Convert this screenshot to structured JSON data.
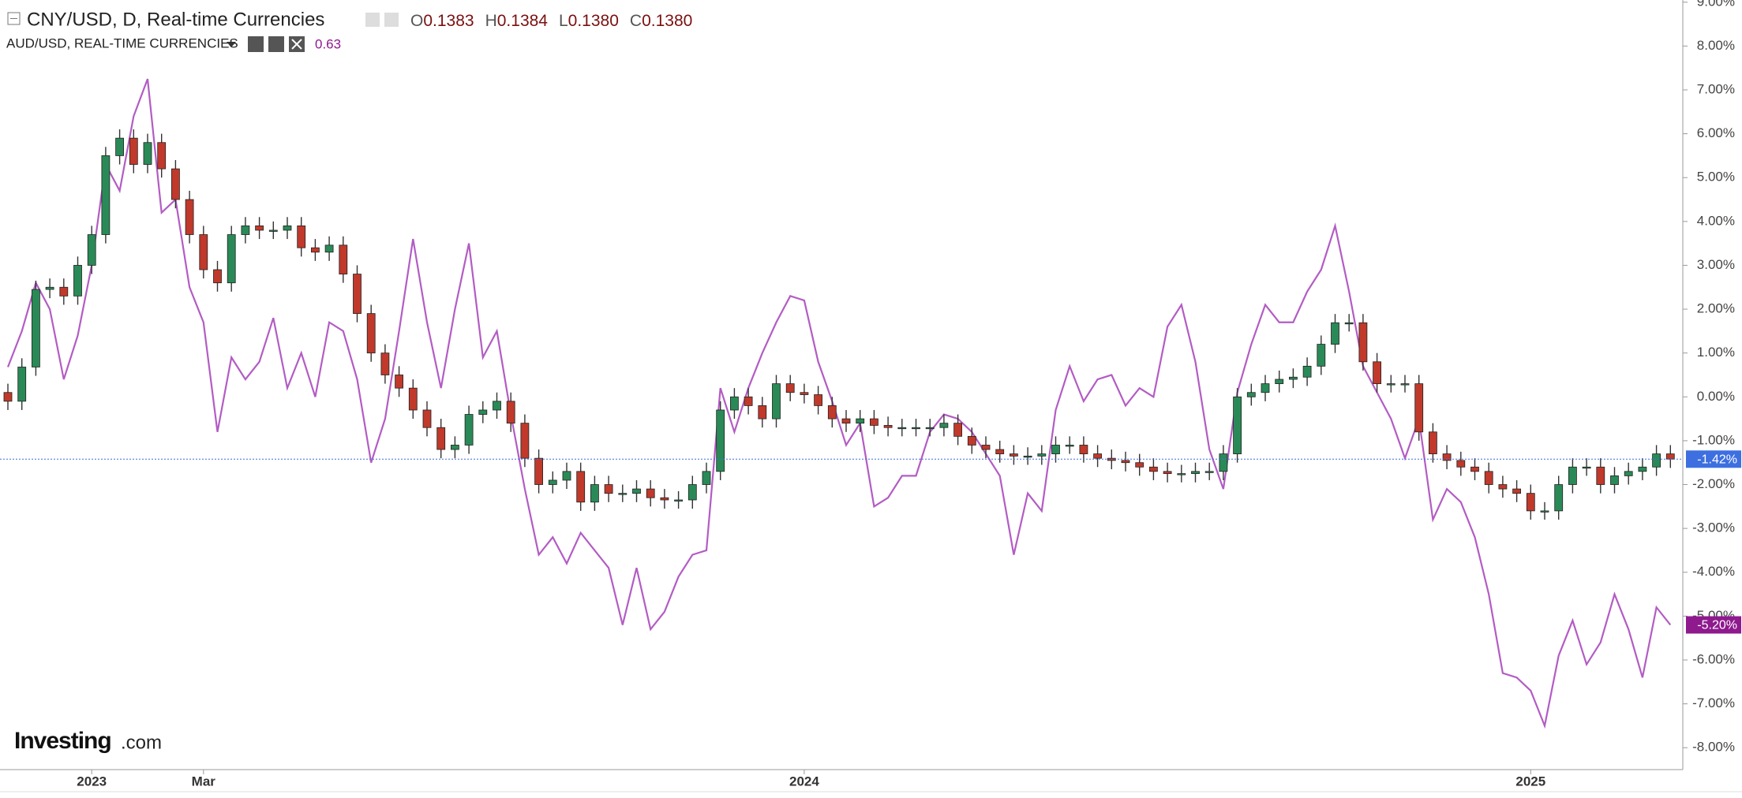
{
  "header": {
    "title": "CNY/USD, D, Real-time Currencies",
    "ohlc": [
      {
        "key": "O",
        "value": "0.1383"
      },
      {
        "key": "H",
        "value": "0.1384"
      },
      {
        "key": "L",
        "value": "0.1380"
      },
      {
        "key": "C",
        "value": "0.1380"
      }
    ],
    "overlay_title": "AUD/USD, REAL-TIME CURRENCIES",
    "overlay_value": "0.63"
  },
  "logo": {
    "brand": "Investing",
    "suffix": ".com"
  },
  "chart_data": {
    "type": "candlestick",
    "categories": [
      null,
      null,
      null,
      null,
      null,
      null,
      "2023",
      null,
      null,
      null,
      null,
      null,
      null,
      null,
      "Mar",
      null,
      null,
      null,
      null,
      null,
      null,
      null,
      null,
      null,
      null,
      null,
      null,
      null,
      null,
      null,
      null,
      null,
      null,
      null,
      null,
      null,
      null,
      null,
      null,
      null,
      null,
      null,
      null,
      null,
      null,
      null,
      null,
      null,
      null,
      null,
      null,
      null,
      null,
      null,
      null,
      null,
      null,
      "2024",
      null,
      null,
      null,
      null,
      null,
      null,
      null,
      null,
      null,
      null,
      null,
      null,
      null,
      null,
      null,
      null,
      null,
      null,
      null,
      null,
      null,
      null,
      null,
      null,
      null,
      null,
      null,
      null,
      null,
      null,
      null,
      null,
      null,
      null,
      null,
      null,
      null,
      null,
      null,
      null,
      null,
      null,
      null,
      null,
      null,
      null,
      null,
      null,
      null,
      null,
      null,
      "2025",
      null,
      null,
      null,
      null,
      null,
      null,
      null,
      null,
      null,
      null
    ],
    "open": [
      0.1,
      -0.1,
      0.68,
      2.45,
      2.5,
      2.3,
      3.0,
      3.7,
      5.5,
      5.9,
      5.3,
      5.8,
      5.2,
      4.5,
      3.7,
      2.9,
      2.6,
      3.7,
      3.9,
      3.8,
      3.8,
      3.9,
      3.4,
      3.3,
      3.46,
      2.8,
      1.9,
      1.0,
      0.5,
      0.2,
      -0.3,
      -0.7,
      -1.2,
      -1.1,
      -0.4,
      -0.3,
      -0.1,
      -0.6,
      -1.4,
      -2.0,
      -1.9,
      -1.7,
      -2.4,
      -2.0,
      -2.2,
      -2.2,
      -2.1,
      -2.3,
      -2.35,
      -2.35,
      -2.0,
      -1.7,
      -0.3,
      0.0,
      -0.2,
      -0.5,
      0.3,
      0.1,
      0.05,
      -0.2,
      -0.5,
      -0.6,
      -0.5,
      -0.65,
      -0.7,
      -0.7,
      -0.7,
      -0.7,
      -0.6,
      -0.9,
      -1.1,
      -1.2,
      -1.3,
      -1.35,
      -1.35,
      -1.3,
      -1.1,
      -1.1,
      -1.3,
      -1.4,
      -1.45,
      -1.5,
      -1.6,
      -1.7,
      -1.75,
      -1.75,
      -1.7,
      -1.7,
      -1.3,
      0.0,
      0.1,
      0.3,
      0.4,
      0.45,
      0.7,
      1.2,
      1.69,
      1.69,
      0.8,
      0.3,
      0.3,
      0.3,
      -0.8,
      -1.3,
      -1.45,
      -1.6,
      -1.7,
      -2.0,
      -2.1,
      -2.2,
      -2.6,
      -2.6,
      -2.0,
      -1.6,
      -1.6,
      -2.0,
      -1.8,
      -1.7,
      -1.6,
      -1.3
    ],
    "high": [
      0.3,
      0.88,
      2.65,
      2.7,
      2.7,
      3.2,
      3.9,
      5.7,
      6.1,
      6.1,
      6.0,
      6.0,
      5.4,
      4.7,
      3.9,
      3.1,
      3.9,
      4.1,
      4.1,
      4.0,
      4.1,
      4.1,
      3.6,
      3.66,
      3.66,
      3.0,
      2.1,
      1.2,
      0.7,
      0.4,
      -0.1,
      -0.5,
      -0.9,
      -0.2,
      -0.1,
      0.1,
      0.1,
      -0.4,
      -1.2,
      -1.7,
      -1.5,
      -1.5,
      -1.8,
      -1.8,
      -2.0,
      -1.9,
      -1.9,
      -2.1,
      -2.15,
      -1.8,
      -1.5,
      -0.1,
      0.2,
      0.2,
      0.0,
      0.5,
      0.5,
      0.3,
      0.25,
      0.0,
      -0.3,
      -0.3,
      -0.3,
      -0.45,
      -0.5,
      -0.5,
      -0.5,
      -0.4,
      -0.4,
      -0.7,
      -0.9,
      -1.0,
      -1.1,
      -1.15,
      -1.1,
      -0.9,
      -0.9,
      -0.9,
      -1.1,
      -1.2,
      -1.25,
      -1.3,
      -1.4,
      -1.5,
      -1.55,
      -1.5,
      -1.5,
      -1.1,
      0.2,
      0.3,
      0.5,
      0.6,
      0.65,
      0.9,
      1.4,
      1.89,
      1.89,
      1.89,
      1.0,
      0.5,
      0.5,
      0.5,
      -0.6,
      -1.1,
      -1.25,
      -1.4,
      -1.5,
      -1.8,
      -1.9,
      -2.0,
      -2.4,
      -1.8,
      -1.4,
      -1.4,
      -1.4,
      -1.6,
      -1.5,
      -1.4,
      -1.1,
      -1.1
    ],
    "low": [
      -0.3,
      -0.3,
      0.48,
      2.25,
      2.1,
      2.1,
      2.8,
      3.5,
      5.3,
      5.1,
      5.1,
      5.0,
      4.3,
      3.5,
      2.7,
      2.4,
      2.4,
      3.5,
      3.6,
      3.6,
      3.6,
      3.2,
      3.1,
      3.1,
      2.6,
      1.7,
      0.8,
      0.3,
      0.0,
      -0.5,
      -0.9,
      -1.4,
      -1.4,
      -1.3,
      -0.6,
      -0.5,
      -0.8,
      -1.6,
      -2.2,
      -2.2,
      -2.1,
      -2.6,
      -2.6,
      -2.4,
      -2.4,
      -2.4,
      -2.5,
      -2.55,
      -2.55,
      -2.55,
      -2.2,
      -1.9,
      -0.5,
      -0.4,
      -0.7,
      -0.7,
      -0.1,
      -0.15,
      -0.4,
      -0.7,
      -0.8,
      -0.8,
      -0.85,
      -0.9,
      -0.9,
      -0.9,
      -0.9,
      -0.9,
      -1.1,
      -1.3,
      -1.4,
      -1.5,
      -1.55,
      -1.55,
      -1.55,
      -1.5,
      -1.3,
      -1.5,
      -1.6,
      -1.65,
      -1.7,
      -1.8,
      -1.9,
      -1.95,
      -1.95,
      -1.95,
      -1.9,
      -1.9,
      -1.5,
      -0.2,
      -0.1,
      0.1,
      0.2,
      0.25,
      0.5,
      1.0,
      1.49,
      0.6,
      0.1,
      0.1,
      0.1,
      -1.0,
      -1.5,
      -1.65,
      -1.8,
      -1.9,
      -2.2,
      -2.3,
      -2.4,
      -2.8,
      -2.8,
      -2.8,
      -2.2,
      -1.8,
      -2.2,
      -2.2,
      -2.0,
      -1.9,
      -1.8,
      -1.62
    ],
    "close": [
      -0.1,
      0.68,
      2.45,
      2.5,
      2.3,
      3.0,
      3.7,
      5.5,
      5.9,
      5.3,
      5.8,
      5.2,
      4.5,
      3.7,
      2.9,
      2.6,
      3.7,
      3.9,
      3.8,
      3.8,
      3.9,
      3.4,
      3.3,
      3.46,
      2.8,
      1.9,
      1.0,
      0.5,
      0.2,
      -0.3,
      -0.7,
      -1.2,
      -1.1,
      -0.4,
      -0.3,
      -0.1,
      -0.6,
      -1.4,
      -2.0,
      -1.9,
      -1.7,
      -2.4,
      -2.0,
      -2.2,
      -2.2,
      -2.1,
      -2.3,
      -2.35,
      -2.35,
      -2.0,
      -1.7,
      -0.3,
      0.0,
      -0.2,
      -0.5,
      0.3,
      0.1,
      0.05,
      -0.2,
      -0.5,
      -0.6,
      -0.5,
      -0.65,
      -0.7,
      -0.7,
      -0.7,
      -0.7,
      -0.6,
      -0.9,
      -1.1,
      -1.2,
      -1.3,
      -1.35,
      -1.35,
      -1.3,
      -1.1,
      -1.1,
      -1.3,
      -1.4,
      -1.45,
      -1.5,
      -1.6,
      -1.7,
      -1.75,
      -1.75,
      -1.7,
      -1.7,
      -1.3,
      0.0,
      0.1,
      0.3,
      0.4,
      0.45,
      0.7,
      1.2,
      1.69,
      1.69,
      0.8,
      0.3,
      0.3,
      0.3,
      -0.8,
      -1.3,
      -1.45,
      -1.6,
      -1.7,
      -2.0,
      -2.1,
      -2.2,
      -2.6,
      -2.6,
      -2.0,
      -1.6,
      -1.6,
      -2.0,
      -1.8,
      -1.7,
      -1.6,
      -1.3,
      -1.42
    ],
    "up_color": "#2a8a57",
    "down_color": "#c0392b",
    "last_label": "-1.42%",
    "last_color": "#3d6fe0",
    "overlay": {
      "name": "AUD/USD, REAL-TIME CURRENCIES",
      "color": "#b35cc4",
      "last_label": "-5.20%",
      "last_color": "#8e1a8e",
      "values": [
        0.68,
        1.5,
        2.6,
        2.0,
        0.4,
        1.4,
        3.0,
        5.3,
        4.7,
        6.4,
        7.25,
        4.2,
        4.5,
        2.5,
        1.7,
        -0.8,
        0.9,
        0.4,
        0.8,
        1.8,
        0.2,
        1.0,
        0.0,
        1.7,
        1.5,
        0.4,
        -1.5,
        -0.5,
        1.5,
        3.6,
        1.7,
        0.2,
        2.0,
        3.5,
        0.9,
        1.5,
        -0.4,
        -2.1,
        -3.6,
        -3.2,
        -3.8,
        -3.1,
        -3.5,
        -3.9,
        -5.2,
        -3.9,
        -5.3,
        -4.9,
        -4.1,
        -3.6,
        -3.5,
        0.2,
        -0.8,
        0.2,
        1.0,
        1.7,
        2.3,
        2.2,
        0.8,
        -0.1,
        -1.1,
        -0.6,
        -2.5,
        -2.3,
        -1.8,
        -1.8,
        -0.8,
        -0.4,
        -0.5,
        -0.8,
        -1.3,
        -1.8,
        -3.6,
        -2.2,
        -2.6,
        -0.3,
        0.7,
        -0.1,
        0.4,
        0.5,
        -0.2,
        0.2,
        0.0,
        1.6,
        2.1,
        0.8,
        -1.2,
        -2.1,
        0.1,
        1.2,
        2.1,
        1.7,
        1.7,
        2.4,
        2.9,
        3.9,
        2.4,
        0.7,
        0.1,
        -0.5,
        -1.4,
        -0.5,
        -2.8,
        -2.1,
        -2.4,
        -3.2,
        -4.5,
        -6.3,
        -6.4,
        -6.7,
        -7.5,
        -5.9,
        -5.1,
        -6.1,
        -5.6,
        -4.5,
        -5.3,
        -6.4,
        -4.8,
        -5.2
      ]
    },
    "ylim": [
      -8.5,
      9.05
    ],
    "yticks": [
      {
        "value": 9,
        "label": "9.00%"
      },
      {
        "value": 8,
        "label": "8.00%"
      },
      {
        "value": 7,
        "label": "7.00%"
      },
      {
        "value": 6,
        "label": "6.00%"
      },
      {
        "value": 5,
        "label": "5.00%"
      },
      {
        "value": 4,
        "label": "4.00%"
      },
      {
        "value": 3,
        "label": "3.00%"
      },
      {
        "value": 2,
        "label": "2.00%"
      },
      {
        "value": 1,
        "label": "1.00%"
      },
      {
        "value": 0,
        "label": "0.00%"
      },
      {
        "value": -1,
        "label": "-1.00%"
      },
      {
        "value": -2,
        "label": "-2.00%"
      },
      {
        "value": -3,
        "label": "-3.00%"
      },
      {
        "value": -4,
        "label": "-4.00%"
      },
      {
        "value": -5,
        "label": "-5.00%"
      },
      {
        "value": -6,
        "label": "-6.00%"
      },
      {
        "value": -7,
        "label": "-7.00%"
      },
      {
        "value": -8,
        "label": "-8.00%"
      }
    ]
  }
}
